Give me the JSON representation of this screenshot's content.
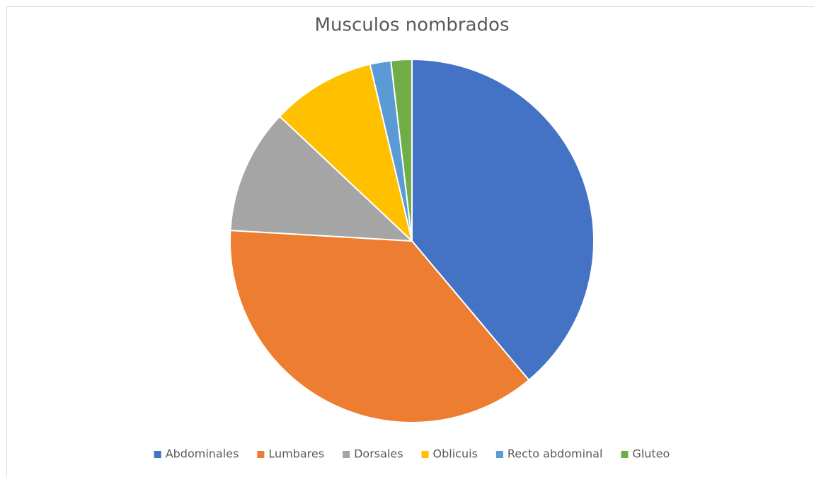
{
  "chart_data": {
    "type": "pie",
    "title": "Musculos nombrados",
    "categories": [
      "Abdominales",
      "Lumbares",
      "Dorsales",
      "Oblicuis",
      "Recto abdominal",
      "Gluteo"
    ],
    "values": [
      21,
      20,
      6,
      5,
      1,
      1
    ],
    "colors": [
      "#4472c4",
      "#ed7d31",
      "#a5a5a5",
      "#ffc000",
      "#5b9bd5",
      "#70ad47"
    ],
    "legend": "bottom"
  }
}
